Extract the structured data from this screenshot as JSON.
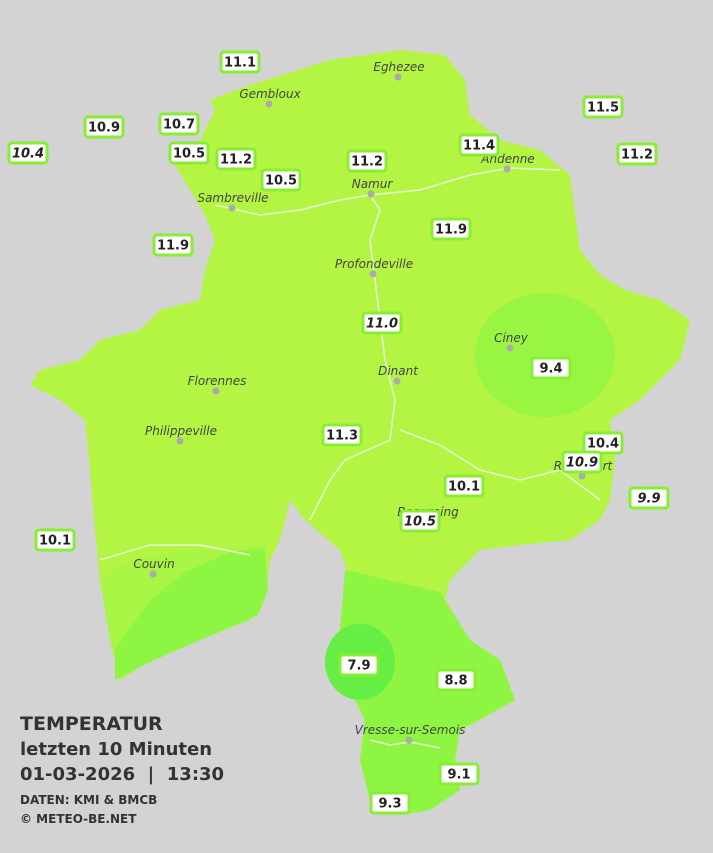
{
  "cities": [
    "Eghezee",
    "Gembloux",
    "Andenne",
    "Namur",
    "Sambreville",
    "Profondeville",
    "Ciney",
    "Dinant",
    "Florennes",
    "Philippeville",
    "Rochefort",
    "Beauraing",
    "Couvin",
    "Vresse-sur-Semois"
  ],
  "stations": [
    {
      "value": "11.1"
    },
    {
      "value": "10.9"
    },
    {
      "value": "10.7"
    },
    {
      "value": "10.4",
      "italic": true
    },
    {
      "value": "10.5"
    },
    {
      "value": "11.2"
    },
    {
      "value": "10.5"
    },
    {
      "value": "11.2"
    },
    {
      "value": "11.4"
    },
    {
      "value": "11.5"
    },
    {
      "value": "11.2"
    },
    {
      "value": "11.9"
    },
    {
      "value": "11.9"
    },
    {
      "value": "11.0",
      "italic": true
    },
    {
      "value": "9.4"
    },
    {
      "value": "11.3"
    },
    {
      "value": "10.4"
    },
    {
      "value": "10.9",
      "italic": true
    },
    {
      "value": "10.1"
    },
    {
      "value": "10.5",
      "italic": true
    },
    {
      "value": "9.9",
      "italic": true
    },
    {
      "value": "10.1"
    },
    {
      "value": "7.9"
    },
    {
      "value": "8.8"
    },
    {
      "value": "9.1"
    },
    {
      "value": "9.3"
    }
  ],
  "legend": {
    "title": "TEMPERATUR",
    "period": "letzten 10 Minuten",
    "datetime": "01-03-2026  |  13:30",
    "source": "DATEN: KMI & BMCB",
    "copyright": "© METEO-BE.NET"
  }
}
